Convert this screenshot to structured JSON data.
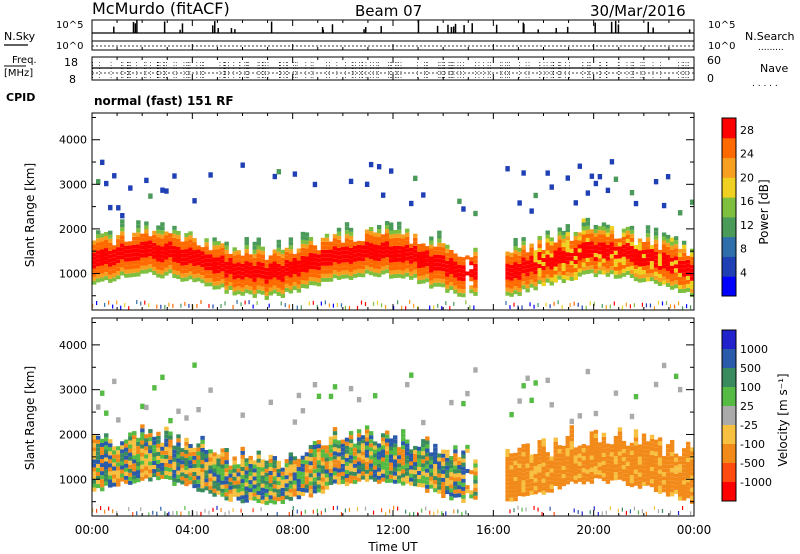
{
  "header": {
    "station": "McMurdo (fitACF)",
    "beam": "Beam 07",
    "date": "30/Mar/2016"
  },
  "top_panels": {
    "nsky_label": "N.Sky",
    "nsky_ticks": [
      "10^5",
      "10^0"
    ],
    "nsearch_label": "N.Search",
    "nsearch_ticks": [
      "10^5",
      "10^0"
    ],
    "nsearch_legend": ".........",
    "freq_label": "Freq.",
    "freq_unit": "[MHz]",
    "freq_ticks": [
      "18",
      "8"
    ],
    "nave_label": "Nave",
    "nave_ticks": [
      "60",
      "0"
    ],
    "nave_legend": ". . . . .",
    "cpid_label": "CPID",
    "cpid_text": "normal (fast) 151 RF"
  },
  "colors": {
    "power_scale": [
      "#0000ff",
      "#1f3fb4",
      "#2e6eaa",
      "#4a9a5a",
      "#7fbf3f",
      "#f0d020",
      "#f7a020",
      "#ff6a00",
      "#ff0000"
    ],
    "velocity_scale": [
      "#2222cc",
      "#2a5aaa",
      "#3a8a60",
      "#55bb44",
      "#aaaaaa",
      "#f7c040",
      "#f28a1a",
      "#ff4a10",
      "#ff0000"
    ]
  },
  "chart_data": [
    {
      "type": "heatmap",
      "name": "power",
      "ylabel": "Slant Range [km]",
      "yticks": [
        "1000",
        "2000",
        "3000",
        "4000"
      ],
      "ylim": [
        180,
        4600
      ],
      "xticks": [
        "00:00",
        "04:00",
        "08:00",
        "12:00",
        "16:00",
        "20:00",
        "00:00"
      ],
      "xlim_hours": [
        0,
        24
      ],
      "colorbar": {
        "label": "Power [dB]",
        "ticks": [
          "4",
          "8",
          "12",
          "16",
          "20",
          "24",
          "28"
        ],
        "range": [
          0,
          30
        ]
      }
    },
    {
      "type": "heatmap",
      "name": "velocity",
      "ylabel": "Slant Range [km]",
      "yticks": [
        "1000",
        "2000",
        "3000",
        "4000"
      ],
      "ylim": [
        180,
        4600
      ],
      "xticks": [
        "00:00",
        "04:00",
        "08:00",
        "12:00",
        "16:00",
        "20:00",
        "00:00"
      ],
      "xlabel": "Time UT",
      "xlim_hours": [
        0,
        24
      ],
      "colorbar": {
        "label": "Velocity [m s⁻¹]",
        "ticks": [
          "1000",
          "500",
          "100",
          "25",
          "-25",
          "-100",
          "-500",
          "-1000"
        ]
      }
    }
  ]
}
